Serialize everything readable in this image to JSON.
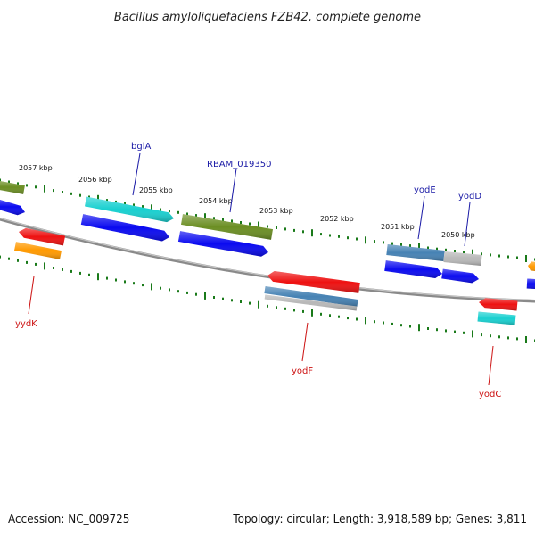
{
  "title": "Bacillus amyloliquefaciens FZB42, complete genome",
  "footer": {
    "accession": "Accession: NC_009725",
    "topology": "Topology: circular; Length: 3,918,589 bp; Genes: 3,811"
  },
  "kbp_ticks": [
    "2057 kbp",
    "2056 kbp",
    "2055 kbp",
    "2054 kbp",
    "2053 kbp",
    "2052 kbp",
    "2051 kbp",
    "2050 kbp"
  ],
  "gene_labels": {
    "forward": [
      "bglA",
      "RBAM_019350",
      "yodE",
      "yodD"
    ],
    "reverse": [
      "yydK",
      "yodF",
      "yodC"
    ]
  },
  "colors": {
    "forward_label": "#1a1aa6",
    "reverse_label": "#cc1111",
    "backbone": "#808080",
    "ticks": "#1a7a1a",
    "blue": "#0a0af0",
    "olive": "#6b8e23",
    "cyan": "#18d0d0",
    "steel": "#4682b4",
    "gray": "#b8b8b8",
    "red": "#ee1111",
    "orange": "#ff9900"
  }
}
